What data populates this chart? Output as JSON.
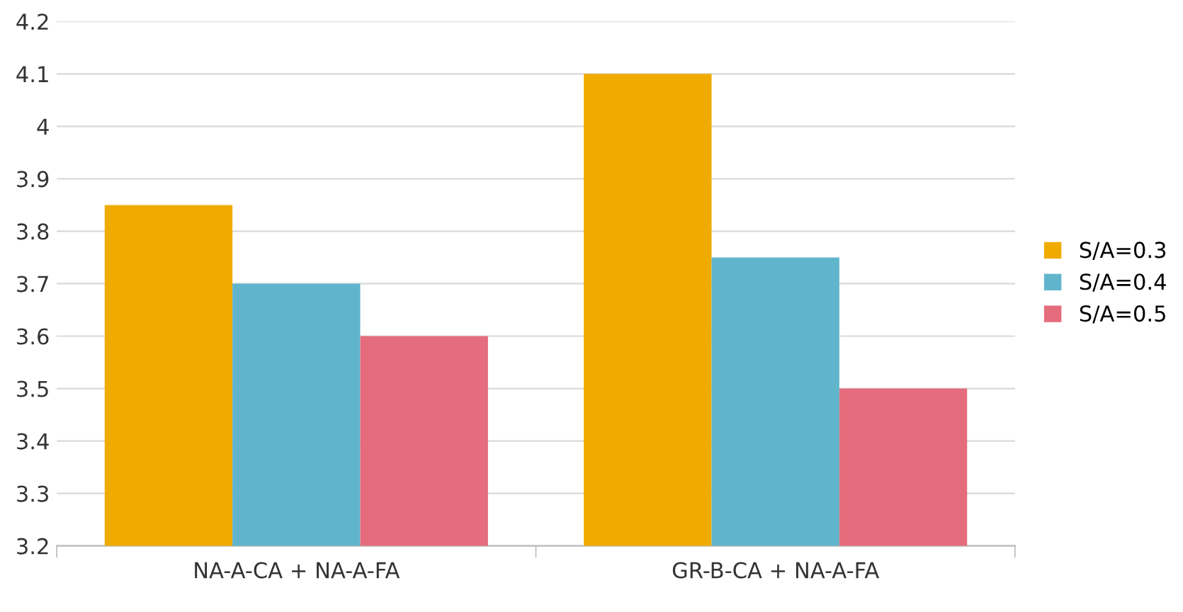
{
  "chart_data": {
    "type": "bar",
    "categories": [
      "NA-A-CA + NA-A-FA",
      "GR-B-CA + NA-A-FA"
    ],
    "series": [
      {
        "name": "S/A=0.3",
        "color": "#f0ab00",
        "values": [
          3.85,
          4.1
        ]
      },
      {
        "name": "S/A=0.4",
        "color": "#60b5cc",
        "values": [
          3.7,
          3.75
        ]
      },
      {
        "name": "S/A=0.5",
        "color": "#e46c7c",
        "values": [
          3.6,
          3.5
        ]
      }
    ],
    "ylim": [
      3.2,
      4.2
    ],
    "yticks": [
      3.2,
      3.3,
      3.4,
      3.5,
      3.6,
      3.7,
      3.8,
      3.9,
      4,
      4.1,
      4.2
    ],
    "grid": "y",
    "legend": "right"
  }
}
